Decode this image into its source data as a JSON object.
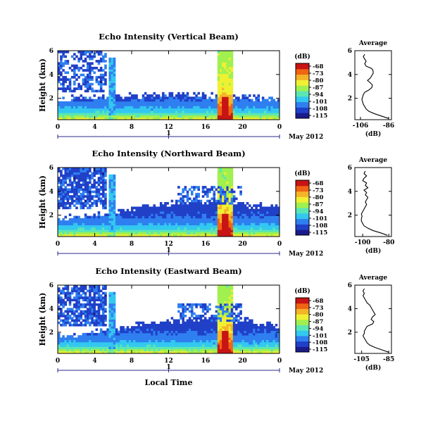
{
  "chart_data": [
    {
      "type": "heatmap",
      "title": "Echo Intensity (Vertical Beam)",
      "ylabel": "Height (km)",
      "x_ticks": [
        "0",
        "4",
        "8",
        "12",
        "16",
        "20",
        "0"
      ],
      "y_ticks": [
        "2",
        "4",
        "6"
      ],
      "xlim_hours": [
        0,
        24
      ],
      "ylim_km": [
        0.2,
        6
      ],
      "day_axis": {
        "label": "1",
        "suffix": "May 2012"
      },
      "colorbar": {
        "unit": "(dB)",
        "ticks": [
          "-68",
          "-73",
          "-80",
          "-87",
          "-94",
          "-101",
          "-108",
          "-115"
        ],
        "colors": [
          "#1a1a8c",
          "#2040c8",
          "#2f7ff0",
          "#32c8f0",
          "#5ae6b4",
          "#a0f050",
          "#f0f032",
          "#f5b428",
          "#f06414",
          "#c81414"
        ]
      },
      "profile": {
        "title": "Average",
        "xlabel": "(dB)",
        "x_ticks": [
          "-106",
          "-86"
        ],
        "xlim": [
          -110,
          -84
        ],
        "y_ticks": [
          "2",
          "4",
          "6"
        ],
        "heights_km": [
          0.3,
          0.5,
          0.7,
          0.9,
          1.1,
          1.3,
          1.5,
          1.7,
          1.9,
          2.1,
          2.3,
          2.5,
          2.7,
          2.9,
          3.1,
          3.3,
          3.5,
          3.7,
          3.9,
          4.1,
          4.3,
          4.5,
          4.7,
          4.9,
          5.1,
          5.3,
          5.5,
          5.7
        ],
        "values_db": [
          -86,
          -91,
          -96,
          -100,
          -102,
          -103,
          -104,
          -104.5,
          -105,
          -104.5,
          -104,
          -103,
          -100,
          -98,
          -97.5,
          -99,
          -101,
          -99,
          -98,
          -97,
          -97,
          -98,
          -102,
          -103,
          -102,
          -103,
          -104,
          -103
        ]
      }
    },
    {
      "type": "heatmap",
      "title": "Echo Intensity (Northward Beam)",
      "ylabel": "Height (km)",
      "x_ticks": [
        "0",
        "4",
        "8",
        "12",
        "16",
        "20",
        "0"
      ],
      "y_ticks": [
        "2",
        "4",
        "6"
      ],
      "xlim_hours": [
        0,
        24
      ],
      "ylim_km": [
        0.2,
        6
      ],
      "day_axis": {
        "label": "1",
        "suffix": "May 2012"
      },
      "colorbar": {
        "unit": "(dB)",
        "ticks": [
          "-68",
          "-73",
          "-80",
          "-87",
          "-94",
          "-101",
          "-108",
          "-115"
        ],
        "colors": [
          "#1a1a8c",
          "#2040c8",
          "#2f7ff0",
          "#32c8f0",
          "#5ae6b4",
          "#a0f050",
          "#f0f032",
          "#f5b428",
          "#f06414",
          "#c81414"
        ]
      },
      "profile": {
        "title": "Average",
        "xlabel": "(dB)",
        "x_ticks": [
          "-100",
          "-80"
        ],
        "xlim": [
          -106,
          -78
        ],
        "y_ticks": [
          "2",
          "4",
          "6"
        ],
        "heights_km": [
          0.3,
          0.5,
          0.7,
          0.9,
          1.1,
          1.3,
          1.5,
          1.7,
          1.9,
          2.1,
          2.3,
          2.5,
          2.7,
          2.9,
          3.1,
          3.3,
          3.5,
          3.7,
          3.9,
          4.1,
          4.3,
          4.5,
          4.7,
          4.9,
          5.1,
          5.3,
          5.5,
          5.7
        ],
        "values_db": [
          -81,
          -86,
          -92,
          -96,
          -99,
          -100,
          -101,
          -101,
          -100.5,
          -101,
          -100,
          -99,
          -98,
          -97,
          -98,
          -97,
          -96,
          -98,
          -97,
          -99,
          -96,
          -98,
          -97,
          -100,
          -99,
          -97,
          -99,
          -98
        ]
      }
    },
    {
      "type": "heatmap",
      "title": "Echo Intensity (Eastward Beam)",
      "ylabel": "Height (km)",
      "xlabel": "Local Time",
      "x_ticks": [
        "0",
        "4",
        "8",
        "12",
        "16",
        "20",
        "0"
      ],
      "y_ticks": [
        "2",
        "4",
        "6"
      ],
      "xlim_hours": [
        0,
        24
      ],
      "ylim_km": [
        0.2,
        6
      ],
      "day_axis": {
        "label": "1",
        "suffix": "May 2012"
      },
      "colorbar": {
        "unit": "(dB)",
        "ticks": [
          "-68",
          "-73",
          "-80",
          "-87",
          "-94",
          "-101",
          "-108",
          "-115"
        ],
        "colors": [
          "#1a1a8c",
          "#2040c8",
          "#2f7ff0",
          "#32c8f0",
          "#5ae6b4",
          "#a0f050",
          "#f0f032",
          "#f5b428",
          "#f06414",
          "#c81414"
        ]
      },
      "profile": {
        "title": "Average",
        "xlabel": "(dB)",
        "x_ticks": [
          "-105",
          "-85"
        ],
        "xlim": [
          -110,
          -83
        ],
        "y_ticks": [
          "2",
          "4",
          "6"
        ],
        "heights_km": [
          0.3,
          0.5,
          0.7,
          0.9,
          1.1,
          1.3,
          1.5,
          1.7,
          1.9,
          2.1,
          2.3,
          2.5,
          2.7,
          2.9,
          3.1,
          3.3,
          3.5,
          3.7,
          3.9,
          4.1,
          4.3,
          4.5,
          4.7,
          4.9,
          5.1,
          5.3,
          5.5,
          5.7
        ],
        "values_db": [
          -85,
          -90,
          -95,
          -99,
          -101,
          -102,
          -103,
          -104,
          -103,
          -103,
          -102,
          -101,
          -97,
          -96,
          -98,
          -97,
          -95,
          -96,
          -97,
          -98,
          -99,
          -101,
          -102,
          -103,
          -104,
          -103,
          -104,
          -103
        ]
      }
    }
  ]
}
